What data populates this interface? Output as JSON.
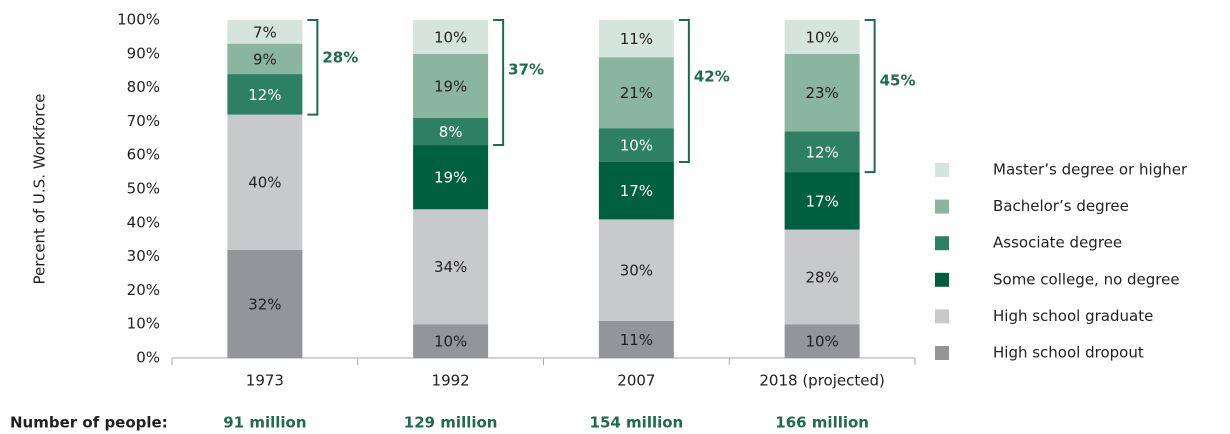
{
  "chart_data": {
    "type": "stacked_bar",
    "y_label": "Percent of U.S. Workforce",
    "categories": [
      "1973",
      "1992",
      "2007",
      "2018 (projected)"
    ],
    "series": [
      {
        "name": "High school dropout",
        "color": "#939598",
        "text_color": "#231f20",
        "values": [
          32,
          10,
          11,
          10
        ],
        "value_labels": [
          "32%",
          "10%",
          "11%",
          "10%"
        ]
      },
      {
        "name": "High school graduate",
        "color": "#c8c9cb",
        "text_color": "#231f20",
        "values": [
          40,
          34,
          30,
          28
        ],
        "value_labels": [
          "40%",
          "34%",
          "30%",
          "28%"
        ]
      },
      {
        "name": "Some college, no degree",
        "color": "#005f3f",
        "text_color": "#ffffff",
        "values": [
          null,
          19,
          17,
          17
        ],
        "value_labels": [
          null,
          "19%",
          "17%",
          "17%"
        ]
      },
      {
        "name": "Associate degree",
        "color": "#2e8065",
        "text_color": "#ffffff",
        "values": [
          12,
          8,
          10,
          12
        ],
        "value_labels": [
          "12%",
          "8%",
          "10%",
          "12%"
        ]
      },
      {
        "name": "Bachelor’s degree",
        "color": "#8ab5a1",
        "text_color": "#231f20",
        "values": [
          9,
          19,
          21,
          23
        ],
        "value_labels": [
          "9%",
          "19%",
          "21%",
          "23%"
        ]
      },
      {
        "name": "Master’s degree or higher",
        "color": "#d6e4de",
        "text_color": "#231f20",
        "values": [
          7,
          10,
          11,
          10
        ],
        "value_labels": [
          "7%",
          "10%",
          "11%",
          "10%"
        ]
      }
    ],
    "brackets": {
      "color": "#1e6b4d",
      "values": [
        28,
        37,
        42,
        45
      ],
      "value_labels": [
        "28%",
        "37%",
        "42%",
        "45%"
      ]
    },
    "footer": {
      "label": "Number of people:",
      "values": [
        "91 million",
        "129 million",
        "154 million",
        "166 million"
      ],
      "color": "#1e6b4d"
    },
    "ylim": [
      0,
      100
    ],
    "yticks": [
      {
        "value": 0,
        "label": "0%"
      },
      {
        "value": 10,
        "label": "10%"
      },
      {
        "value": 20,
        "label": "20%"
      },
      {
        "value": 30,
        "label": "30%"
      },
      {
        "value": 40,
        "label": "40%"
      },
      {
        "value": 50,
        "label": "50%"
      },
      {
        "value": 60,
        "label": "60%"
      },
      {
        "value": 70,
        "label": "70%"
      },
      {
        "value": 80,
        "label": "80%"
      },
      {
        "value": 90,
        "label": "90%"
      },
      {
        "value": 100,
        "label": "100%"
      }
    ],
    "legend": "right"
  }
}
